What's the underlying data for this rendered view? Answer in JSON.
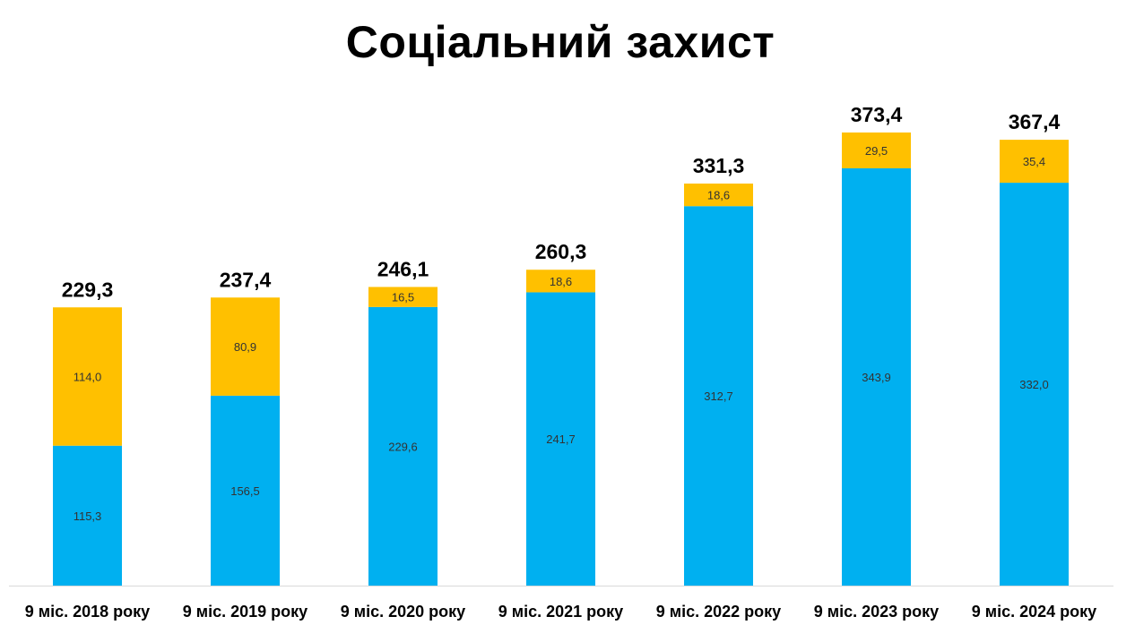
{
  "title": "Соціальний захист",
  "colors": {
    "lower": "#00B0F0",
    "upper": "#FFC000",
    "axis": "#D9D9D9"
  },
  "chart_data": {
    "type": "bar",
    "stacked": true,
    "categories": [
      "9 міс. 2018 року",
      "9 міс. 2019 року",
      "9 міс. 2020 року",
      "9 міс. 2021 року",
      "9 міс. 2022 року",
      "9 міс. 2023 року",
      "9 міс. 2024 року"
    ],
    "series": [
      {
        "values": [
          115.3,
          156.5,
          229.6,
          241.7,
          312.7,
          343.9,
          332.0
        ],
        "labels": [
          "115,3",
          "156,5",
          "229,6",
          "241,7",
          "312,7",
          "343,9",
          "332,0"
        ],
        "color": "#00B0F0"
      },
      {
        "values": [
          114.0,
          80.9,
          16.5,
          18.6,
          18.6,
          29.5,
          35.4
        ],
        "labels": [
          "114,0",
          "80,9",
          "16,5",
          "18,6",
          "18,6",
          "29,5",
          "35,4"
        ],
        "color": "#FFC000"
      }
    ],
    "totals": [
      229.3,
      237.4,
      246.1,
      260.3,
      331.3,
      373.4,
      367.4
    ],
    "total_labels": [
      "229,3",
      "237,4",
      "246,1",
      "260,3",
      "331,3",
      "373,4",
      "367,4"
    ],
    "title": "Соціальний захист",
    "xlabel": "",
    "ylabel": "",
    "grid": false,
    "legend": "none"
  }
}
